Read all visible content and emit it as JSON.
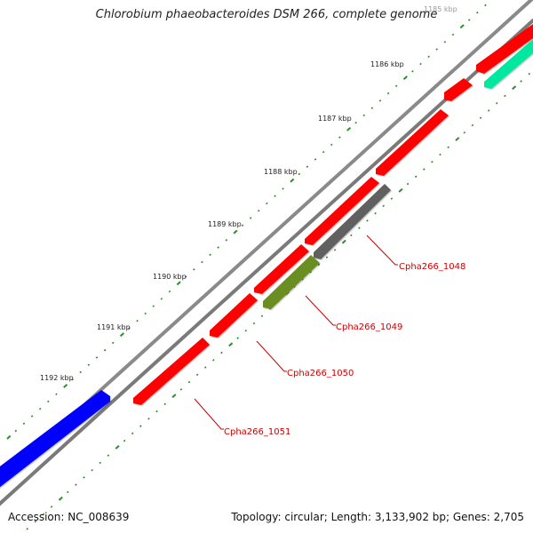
{
  "title": "Chlorobium phaeobacteroides DSM 266, complete genome",
  "footer": {
    "accession": "Accession: NC_008639",
    "topology": "Topology: circular; Length: 3,133,902 bp; Genes: 2,705"
  },
  "colors": {
    "backbone": "#808080",
    "forward_gene": "#ff0000",
    "reverse_gene_blue": "#0000ff",
    "reverse_gene_teal": "#00e8a0",
    "reverse_gene_gray": "#606060",
    "reverse_gene_olive": "#6b8e23",
    "tick_marks": "#2e8b2e",
    "label_text": "#cc0000"
  },
  "scale_labels": [
    "1185 kbp",
    "1186 kbp",
    "1187 kbp",
    "1188 kbp",
    "1189 kbp",
    "1190 kbp",
    "1191 kbp",
    "1192 kbp"
  ],
  "gene_labels": [
    "Cpha266_1048",
    "Cpha266_1049",
    "Cpha266_1050",
    "Cpha266_1051"
  ]
}
